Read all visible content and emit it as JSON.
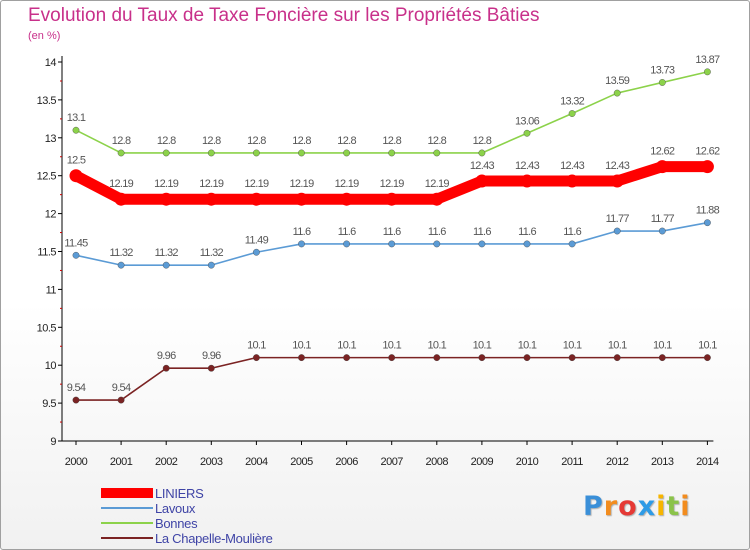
{
  "chart_data": {
    "type": "line",
    "title": "Evolution du Taux de Taxe Foncière sur les Propriétés Bâties",
    "unit_label": "(en %)",
    "x": [
      "2000",
      "2001",
      "2002",
      "2003",
      "2004",
      "2005",
      "2006",
      "2007",
      "2008",
      "2009",
      "2010",
      "2011",
      "2012",
      "2013",
      "2014"
    ],
    "ylim": [
      9,
      14
    ],
    "yticks": [
      "9",
      "9.5",
      "10",
      "10.5",
      "11",
      "11.5",
      "12",
      "12.5",
      "13",
      "13.5",
      "14"
    ],
    "series": [
      {
        "name": "LINIERS",
        "color": "#ff0000",
        "bold": true,
        "values": [
          12.5,
          12.19,
          12.19,
          12.19,
          12.19,
          12.19,
          12.19,
          12.19,
          12.19,
          12.43,
          12.43,
          12.43,
          12.43,
          12.62,
          12.62
        ],
        "labels": [
          "12.5",
          "12.19",
          "12.19",
          "12.19",
          "12.19",
          "12.19",
          "12.19",
          "12.19",
          "12.19",
          "12.43",
          "12.43",
          "12.43",
          "12.43",
          "12.62",
          "12.62"
        ]
      },
      {
        "name": "Lavoux",
        "color": "#5b9bd5",
        "bold": false,
        "values": [
          11.45,
          11.32,
          11.32,
          11.32,
          11.49,
          11.6,
          11.6,
          11.6,
          11.6,
          11.6,
          11.6,
          11.6,
          11.77,
          11.77,
          11.88
        ],
        "labels": [
          "11.45",
          "11.32",
          "11.32",
          "11.32",
          "11.49",
          "11.6",
          "11.6",
          "11.6",
          "11.6",
          "11.6",
          "11.6",
          "11.6",
          "11.77",
          "11.77",
          "11.88"
        ]
      },
      {
        "name": "Bonnes",
        "color": "#8cd24a",
        "bold": false,
        "values": [
          13.1,
          12.8,
          12.8,
          12.8,
          12.8,
          12.8,
          12.8,
          12.8,
          12.8,
          12.8,
          13.06,
          13.32,
          13.59,
          13.73,
          13.87
        ],
        "labels": [
          "13.1",
          "12.8",
          "12.8",
          "12.8",
          "12.8",
          "12.8",
          "12.8",
          "12.8",
          "12.8",
          "12.8",
          "13.06",
          "13.32",
          "13.59",
          "13.73",
          "13.87"
        ]
      },
      {
        "name": "La Chapelle-Moulière",
        "color": "#7b2323",
        "bold": false,
        "values": [
          9.54,
          9.54,
          9.96,
          9.96,
          10.1,
          10.1,
          10.1,
          10.1,
          10.1,
          10.1,
          10.1,
          10.1,
          10.1,
          10.1,
          10.1
        ],
        "labels": [
          "9.54",
          "9.54",
          "9.96",
          "9.96",
          "10.1",
          "10.1",
          "10.1",
          "10.1",
          "10.1",
          "10.1",
          "10.1",
          "10.1",
          "10.1",
          "10.1",
          "10.1"
        ]
      }
    ]
  },
  "logo": {
    "letters": [
      "P",
      "r",
      "o",
      "x",
      "i",
      "t",
      "i"
    ],
    "colors": [
      "#3a8fd8",
      "#f28c1e",
      "#e53935",
      "#2e9be6",
      "#f7b500",
      "#8bc34a",
      "#f28c1e"
    ]
  }
}
